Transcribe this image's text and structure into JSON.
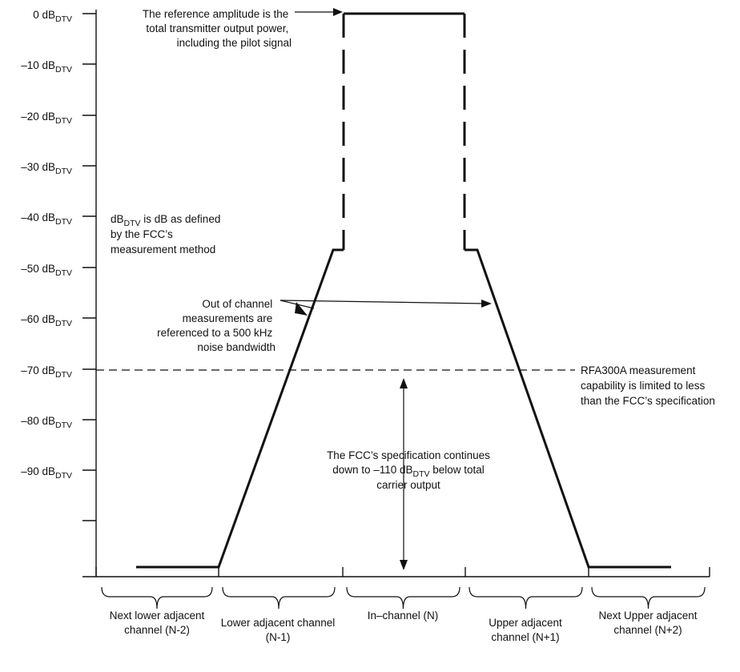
{
  "axis_labels": [
    {
      "num": "0 dB",
      "sub": "DTV"
    },
    {
      "num": "–10 dB",
      "sub": "DTV"
    },
    {
      "num": "–20 dB",
      "sub": "DTV"
    },
    {
      "num": "–30 dB",
      "sub": "DTV"
    },
    {
      "num": "–40 dB",
      "sub": "DTV"
    },
    {
      "num": "–50 dB",
      "sub": "DTV"
    },
    {
      "num": "–60 dB",
      "sub": "DTV"
    },
    {
      "num": "–70 dB",
      "sub": "DTV"
    },
    {
      "num": "–80 dB",
      "sub": "DTV"
    },
    {
      "num": "–90 dB",
      "sub": "DTV"
    }
  ],
  "annotations": {
    "reference": [
      "The reference amplitude is the",
      "total transmitter output power,",
      "including the pilot signal"
    ],
    "dbdtv_def": {
      "pre": "dB",
      "sub": "DTV",
      "post": " is dB as defined",
      "lines": [
        "by the FCC’s",
        "measurement method"
      ]
    },
    "out_of_channel": [
      "Out of channel",
      "measurements are",
      "referenced to a 500 kHz",
      "noise bandwidth"
    ],
    "rfa300a": [
      "RFA300A measurement",
      "capability is limited to less",
      "than the FCC’s specification"
    ],
    "fcc_spec": {
      "line1": "The FCC’s specification continues",
      "line2_pre": "down to –110 dB",
      "line2_sub": "DTV",
      "line2_post": " below total",
      "line3": "carrier output"
    }
  },
  "channels": [
    [
      "Next lower adjacent",
      "channel (N-2)"
    ],
    [
      "Lower adjacent channel",
      "(N-1)"
    ],
    [
      "In–channel (N)"
    ],
    [
      "Upper adjacent",
      "channel (N+1)"
    ],
    [
      "Next Upper adjacent",
      "channel (N+2)"
    ]
  ]
}
